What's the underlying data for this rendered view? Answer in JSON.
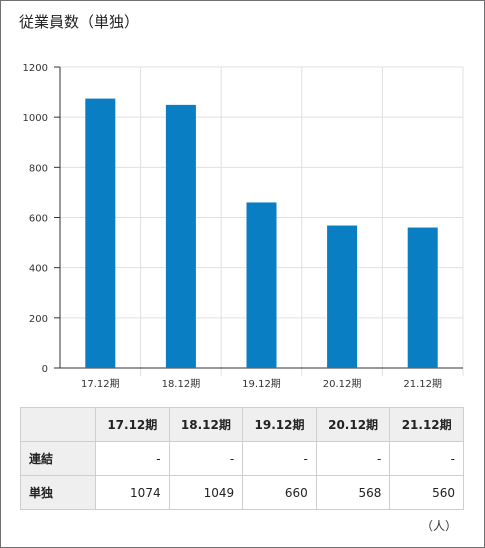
{
  "title": "従業員数（単独）",
  "unit": "（人）",
  "colors": {
    "bar": "#0a7ec2",
    "grid": "#e0e0e0",
    "axis": "#333333",
    "header_bg": "#efefef"
  },
  "chart_data": {
    "type": "bar",
    "categories": [
      "17.12期",
      "18.12期",
      "19.12期",
      "20.12期",
      "21.12期"
    ],
    "values": [
      1074,
      1049,
      660,
      568,
      560
    ],
    "ylim": [
      0,
      1200
    ],
    "yticks": [
      0,
      200,
      400,
      600,
      800,
      1000,
      1200
    ],
    "grid": true
  },
  "table": {
    "columns": [
      "17.12期",
      "18.12期",
      "19.12期",
      "20.12期",
      "21.12期"
    ],
    "rows": [
      {
        "label": "連結",
        "values": [
          "-",
          "-",
          "-",
          "-",
          "-"
        ]
      },
      {
        "label": "単独",
        "values": [
          "1074",
          "1049",
          "660",
          "568",
          "560"
        ]
      }
    ]
  }
}
